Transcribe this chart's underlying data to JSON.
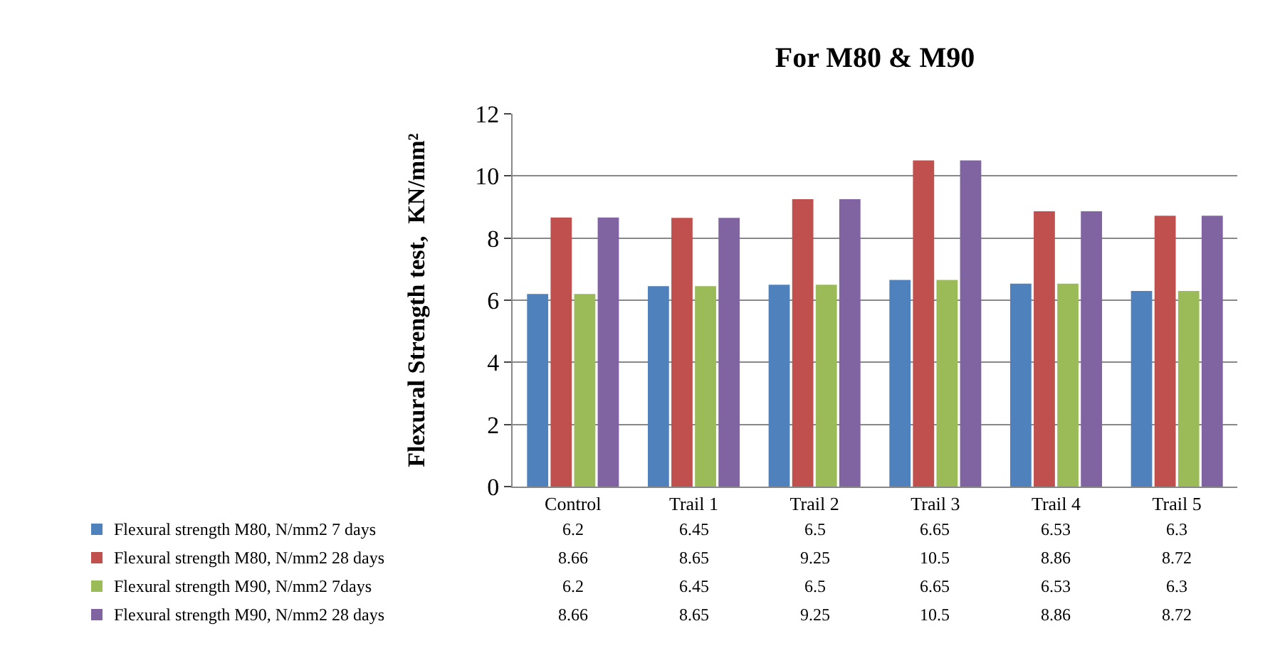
{
  "chart_data": {
    "type": "bar",
    "title": "For M80 & M90",
    "ylabel": "Flexural Strength test,  KN/mm²",
    "categories": [
      "Control",
      "Trail 1",
      "Trail 2",
      "Trail 3",
      "Trail 4",
      "Trail 5"
    ],
    "series": [
      {
        "name": "Flexural strength M80, N/mm2 7 days",
        "color": "#4f81bd",
        "values": [
          6.2,
          6.45,
          6.5,
          6.65,
          6.53,
          6.3
        ]
      },
      {
        "name": "Flexural strength M80, N/mm2 28 days",
        "color": "#c0504d",
        "values": [
          8.66,
          8.65,
          9.25,
          10.5,
          8.86,
          8.72
        ]
      },
      {
        "name": "Flexural strength M90, N/mm2 7days",
        "color": "#9bbb59",
        "values": [
          6.2,
          6.45,
          6.5,
          6.65,
          6.53,
          6.3
        ]
      },
      {
        "name": "Flexural strength M90, N/mm2 28 days",
        "color": "#8064a2",
        "values": [
          8.66,
          8.65,
          9.25,
          10.5,
          8.86,
          8.72
        ]
      }
    ],
    "ylim": [
      0,
      12
    ],
    "yticks": [
      0,
      2,
      4,
      6,
      8,
      10,
      12
    ],
    "grid": "y",
    "legend": "bottom",
    "data_labels": true
  }
}
